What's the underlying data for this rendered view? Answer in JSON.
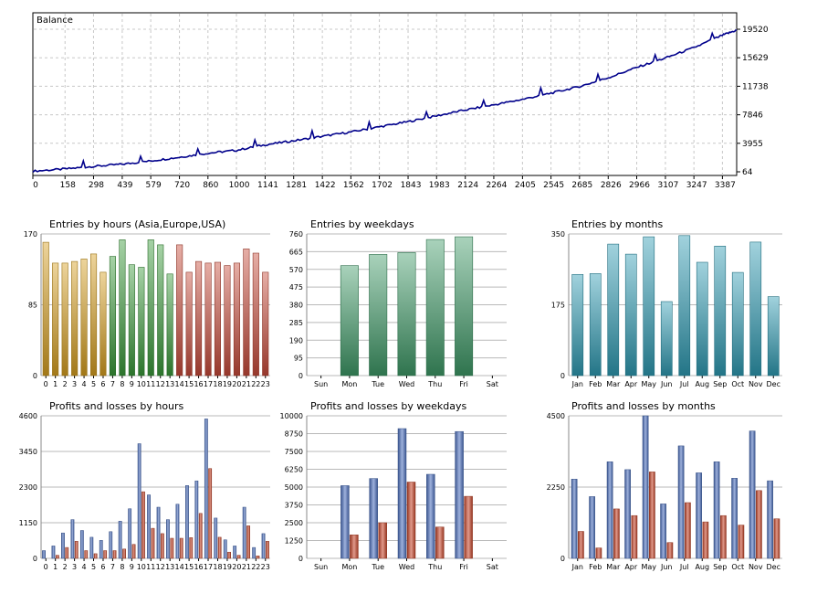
{
  "colors": {
    "balance_line": "#00008b",
    "frame": "#000000",
    "grid": "#c8c8c8",
    "hours_asia": "#d8a020",
    "hours_europe": "#3a9a3a",
    "hours_usa": "#c84b3a",
    "weekday_green": "#3f9b68",
    "month_teal": "#2f9cb4",
    "profit_blue": "#4f72c0",
    "loss_red": "#c8482c"
  },
  "chart_data": [
    {
      "id": "balance",
      "type": "line",
      "title": "Balance",
      "x_ticks": [
        "0",
        "158",
        "298",
        "439",
        "579",
        "720",
        "860",
        "1000",
        "1141",
        "1281",
        "1422",
        "1562",
        "1702",
        "1843",
        "1983",
        "2124",
        "2264",
        "2405",
        "2545",
        "2685",
        "2826",
        "2966",
        "3107",
        "3247",
        "3387"
      ],
      "y_ticks": [
        "64",
        "3955",
        "7846",
        "11738",
        "15629",
        "19520"
      ],
      "ylim": [
        64,
        19520
      ],
      "xlim": [
        0,
        3457
      ],
      "x": [
        0,
        158,
        298,
        439,
        579,
        720,
        860,
        1000,
        1141,
        1281,
        1422,
        1562,
        1702,
        1843,
        1983,
        2124,
        2264,
        2405,
        2545,
        2685,
        2826,
        2966,
        3107,
        3247,
        3387,
        3457
      ],
      "y": [
        150,
        450,
        800,
        1100,
        1550,
        2050,
        2600,
        3000,
        3750,
        4300,
        4900,
        5500,
        6200,
        6900,
        7700,
        8500,
        9200,
        9950,
        10800,
        11700,
        12900,
        14300,
        15600,
        17000,
        18700,
        19400
      ]
    },
    {
      "id": "entries_hours",
      "type": "bar",
      "title": "Entries by hours (Asia,Europe,USA)",
      "categories": [
        "0",
        "1",
        "2",
        "3",
        "4",
        "5",
        "6",
        "7",
        "8",
        "9",
        "10",
        "11",
        "12",
        "13",
        "14",
        "15",
        "16",
        "17",
        "18",
        "19",
        "20",
        "21",
        "22",
        "23"
      ],
      "values": [
        160,
        135,
        135,
        137,
        140,
        146,
        124,
        143,
        163,
        133,
        130,
        163,
        157,
        122,
        157,
        124,
        137,
        135,
        136,
        132,
        135,
        152,
        147,
        124
      ],
      "y_ticks": [
        "0",
        "85",
        "170"
      ],
      "ylim": [
        0,
        170
      ]
    },
    {
      "id": "entries_weekdays",
      "type": "bar",
      "title": "Entries by weekdays",
      "categories": [
        "Sun",
        "Mon",
        "Tue",
        "Wed",
        "Thu",
        "Fri",
        "Sat"
      ],
      "values": [
        0,
        590,
        650,
        660,
        730,
        745,
        0
      ],
      "y_ticks": [
        "0",
        "95",
        "190",
        "285",
        "380",
        "475",
        "570",
        "665",
        "760"
      ],
      "ylim": [
        0,
        760
      ]
    },
    {
      "id": "entries_months",
      "type": "bar",
      "title": "Entries by months",
      "categories": [
        "Jan",
        "Feb",
        "Mar",
        "Apr",
        "May",
        "Jun",
        "Jul",
        "Aug",
        "Sep",
        "Oct",
        "Nov",
        "Dec"
      ],
      "values": [
        250,
        252,
        325,
        300,
        343,
        183,
        346,
        280,
        320,
        255,
        330,
        195
      ],
      "y_ticks": [
        "0",
        "175",
        "350"
      ],
      "ylim": [
        0,
        350
      ]
    },
    {
      "id": "pl_hours",
      "type": "bar",
      "title": "Profits and losses by hours",
      "categories": [
        "0",
        "1",
        "2",
        "3",
        "4",
        "5",
        "6",
        "7",
        "8",
        "9",
        "10",
        "11",
        "12",
        "13",
        "14",
        "15",
        "16",
        "17",
        "18",
        "19",
        "20",
        "21",
        "22",
        "23"
      ],
      "series": [
        {
          "values": [
            250,
            400,
            820,
            1250,
            900,
            680,
            580,
            860,
            1200,
            1600,
            3700,
            2050,
            1650,
            1250,
            1750,
            2350,
            2500,
            4500,
            1300,
            600,
            400,
            1650,
            350,
            800
          ]
        },
        {
          "values": [
            0,
            100,
            350,
            550,
            250,
            150,
            250,
            250,
            300,
            450,
            2150,
            970,
            800,
            650,
            650,
            670,
            1450,
            2900,
            680,
            200,
            100,
            1050,
            80,
            550
          ]
        }
      ],
      "y_ticks": [
        "0",
        "1150",
        "2300",
        "3450",
        "4600"
      ],
      "ylim": [
        0,
        4600
      ]
    },
    {
      "id": "pl_weekdays",
      "type": "bar",
      "title": "Profits and losses by weekdays",
      "categories": [
        "Sun",
        "Mon",
        "Tue",
        "Wed",
        "Thu",
        "Fri",
        "Sat"
      ],
      "series": [
        {
          "values": [
            0,
            5100,
            5600,
            9100,
            5900,
            8900,
            0
          ]
        },
        {
          "values": [
            0,
            1650,
            2500,
            5350,
            2200,
            4350,
            0
          ]
        }
      ],
      "y_ticks": [
        "0",
        "1250",
        "2500",
        "3750",
        "5000",
        "6250",
        "7500",
        "8750",
        "10000"
      ],
      "ylim": [
        0,
        10000
      ]
    },
    {
      "id": "pl_months",
      "type": "bar",
      "title": "Profits and losses by months",
      "categories": [
        "Jan",
        "Feb",
        "Mar",
        "Apr",
        "May",
        "Jun",
        "Jul",
        "Aug",
        "Sep",
        "Oct",
        "Nov",
        "Dec"
      ],
      "series": [
        {
          "values": [
            2500,
            1950,
            3050,
            2800,
            4500,
            1720,
            3550,
            2700,
            3050,
            2530,
            4020,
            2450
          ]
        },
        {
          "values": [
            850,
            330,
            1560,
            1350,
            2730,
            500,
            1760,
            1150,
            1350,
            1050,
            2140,
            1250
          ]
        }
      ],
      "y_ticks": [
        "0",
        "2250",
        "4500"
      ],
      "ylim": [
        0,
        4500
      ]
    }
  ]
}
